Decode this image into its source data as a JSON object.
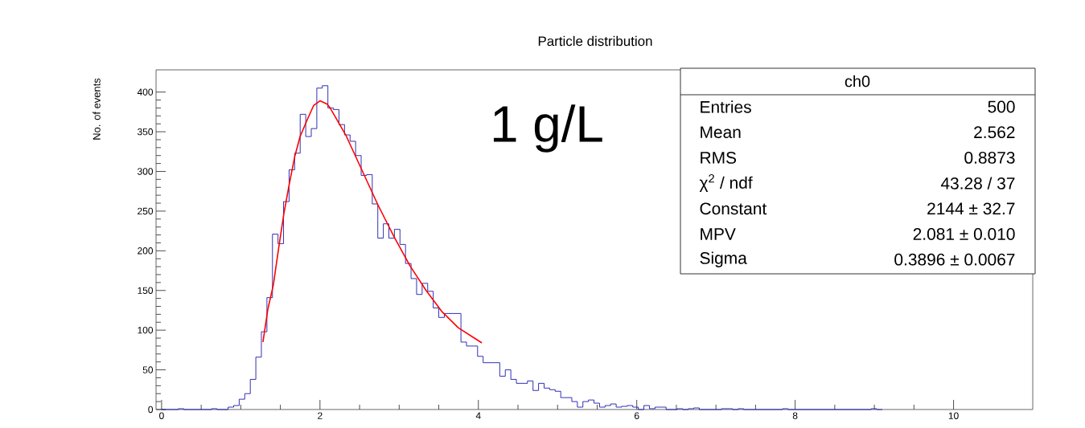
{
  "chart_data": {
    "type": "histogram",
    "title": "Particle distribution",
    "ylabel": "No. of events",
    "xlim": [
      -0.07,
      11.0
    ],
    "ylim": [
      0,
      428
    ],
    "xticks": [
      0,
      2,
      4,
      6,
      8,
      10
    ],
    "yticks": [
      0,
      50,
      100,
      150,
      200,
      250,
      300,
      350,
      400
    ],
    "annotations": [
      "1 g/L",
      "ch0",
      "Entries",
      "500",
      "Mean",
      "2.562",
      "RMS",
      "0.8873",
      "χ$^{2}$ / ndf",
      "43.28 / 37",
      "Constant",
      "2144 ± 32.7",
      "MPV",
      "2.081 ± 0.010",
      "Sigma",
      "0.3896 ± 0.0067"
    ],
    "series": [
      {
        "color": "#1a1ab0",
        "bins": [
          0,
          0.07,
          0.14,
          0.21,
          0.28,
          0.35,
          0.42,
          0.49,
          0.56,
          0.63,
          0.7,
          0.77,
          0.84,
          0.91,
          0.98,
          1.05,
          1.12,
          1.19,
          1.26,
          1.33,
          1.4,
          1.47,
          1.54,
          1.61,
          1.68,
          1.75,
          1.82,
          1.89,
          1.96,
          2.03,
          2.1,
          2.17,
          2.24,
          2.31,
          2.38,
          2.45,
          2.52,
          2.59,
          2.66,
          2.73,
          2.8,
          2.87,
          2.94,
          3.01,
          3.08,
          3.15,
          3.22,
          3.29,
          3.36,
          3.43,
          3.5,
          3.57,
          3.64,
          3.71,
          3.78,
          3.85,
          3.92,
          3.99,
          4.06,
          4.13,
          4.2,
          4.27,
          4.34,
          4.41,
          4.48,
          4.55,
          4.62,
          4.69,
          4.76,
          4.83,
          4.9,
          4.97,
          5.04,
          5.11,
          5.18,
          5.25,
          5.32,
          5.39,
          5.46,
          5.53,
          5.6,
          5.67,
          5.74,
          5.81,
          5.88,
          5.95,
          6.02,
          6.09,
          6.16,
          6.23,
          6.3,
          6.37,
          6.44,
          6.51,
          6.58,
          6.65,
          6.72,
          6.79,
          6.86,
          6.93,
          7.0,
          7.07,
          7.14,
          7.21,
          7.28,
          7.35,
          7.42,
          7.49,
          7.56,
          7.63,
          7.7,
          7.77,
          7.84,
          7.91,
          7.98,
          8.05,
          8.12,
          8.19,
          8.26,
          8.33,
          8.4,
          8.47,
          8.54,
          8.61,
          8.68,
          8.75,
          8.82,
          8.89,
          8.96,
          9.03,
          9.1
        ],
        "values": [
          0,
          0,
          0,
          1,
          0,
          0,
          0,
          0,
          0,
          1,
          0,
          0,
          3,
          5,
          13,
          20,
          38,
          66,
          98,
          141,
          221,
          209,
          262,
          302,
          323,
          372,
          344,
          354,
          405,
          408,
          380,
          378,
          359,
          346,
          338,
          320,
          295,
          296,
          259,
          216,
          234,
          216,
          227,
          208,
          184,
          165,
          145,
          159,
          149,
          128,
          116,
          121,
          121,
          121,
          85,
          80,
          80,
          67,
          59,
          59,
          59,
          42,
          50,
          38,
          33,
          33,
          36,
          24,
          33,
          27,
          25,
          23,
          15,
          15,
          10,
          3,
          10,
          12,
          8,
          3,
          5,
          7,
          3,
          4,
          5,
          3,
          0,
          5,
          1,
          3,
          3,
          0,
          0,
          1,
          0,
          1,
          2,
          0,
          0,
          0,
          0,
          1,
          1,
          0,
          1,
          0,
          0,
          0,
          0,
          0,
          0,
          0,
          1,
          0,
          0,
          0,
          0,
          0,
          0,
          0,
          0,
          0,
          0,
          0,
          0,
          0,
          0,
          0,
          1,
          0
        ]
      },
      {
        "type": "line",
        "color": "#ff0000",
        "x": [
          1.28,
          1.343,
          1.411,
          1.479,
          1.546,
          1.614,
          1.682,
          1.749,
          1.834,
          1.919,
          2.0,
          2.088,
          2.122,
          2.325,
          2.528,
          2.731,
          2.934,
          3.137,
          3.34,
          3.543,
          3.746,
          3.949,
          4.044
        ],
        "values": [
          85,
          127,
          157,
          204,
          248,
          285,
          319,
          344,
          364,
          383,
          389,
          385,
          381,
          346,
          302,
          258,
          218,
          181,
          150,
          123,
          103,
          90,
          84
        ]
      }
    ]
  }
}
